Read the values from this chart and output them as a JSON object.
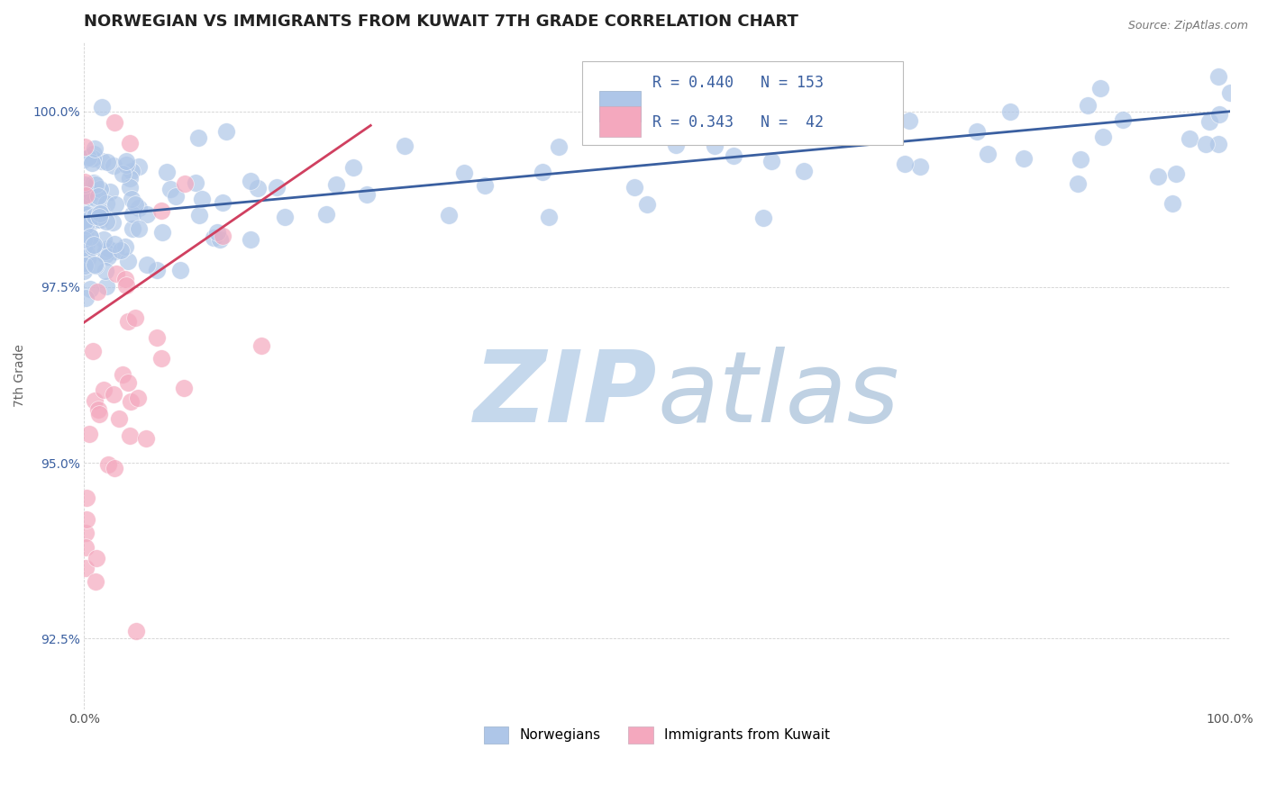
{
  "title": "NORWEGIAN VS IMMIGRANTS FROM KUWAIT 7TH GRADE CORRELATION CHART",
  "source": "Source: ZipAtlas.com",
  "ylabel": "7th Grade",
  "xlim": [
    0.0,
    100.0
  ],
  "ylim": [
    91.5,
    101.0
  ],
  "yticks": [
    92.5,
    95.0,
    97.5,
    100.0
  ],
  "xticklabels": [
    "0.0%",
    "100.0%"
  ],
  "yticklabels": [
    "92.5%",
    "95.0%",
    "97.5%",
    "100.0%"
  ],
  "norwegian_R": 0.44,
  "norwegian_N": 153,
  "kuwait_R": 0.343,
  "kuwait_N": 42,
  "norwegian_color": "#aec6e8",
  "kuwait_color": "#f4a8be",
  "norwegian_line_color": "#3a5fa0",
  "kuwait_line_color": "#d04060",
  "background_color": "#ffffff",
  "watermark_zip_color": "#c5d8ec",
  "watermark_atlas_color": "#b8cce0",
  "legend_label_norwegian": "Norwegians",
  "legend_label_kuwait": "Immigrants from Kuwait",
  "title_fontsize": 13,
  "axis_label_fontsize": 10,
  "tick_fontsize": 10,
  "legend_fontsize": 11,
  "source_fontsize": 9
}
